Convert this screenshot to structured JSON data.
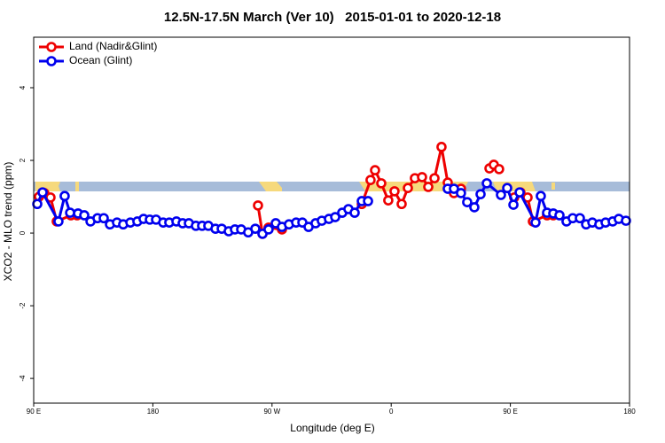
{
  "chart_data": {
    "type": "line",
    "title": "12.5N-17.5N March (Ver 10)   2015-01-01 to 2020-12-18",
    "xlabel": "Longitude (deg E)",
    "ylabel": "XCO2 - MLO trend (ppm)",
    "xlim": [
      -270,
      180
    ],
    "ylim": [
      -4.68,
      5.39
    ],
    "xticks": [
      {
        "value": -270,
        "label": "90 E"
      },
      {
        "value": -180,
        "label": "180"
      },
      {
        "value": -90,
        "label": "90 W"
      },
      0,
      {
        "value": 90,
        "label": "90 E"
      },
      180
    ],
    "yticks": [
      -4,
      -2,
      0,
      2,
      4
    ],
    "legend": "top-left",
    "series": [
      {
        "name": "Land (Nadir&Glint)",
        "color": "#ee0000",
        "x": [
          -266.0,
          -262.0,
          -257.3,
          -252.6,
          -241.9,
          -237.2,
          null,
          -100.6,
          -97.2,
          -92.6,
          -82.5,
          null,
          -22.2,
          -15.6,
          -12.2,
          -7.5,
          -2.2,
          2.5,
          7.9,
          12.6,
          17.9,
          23.3,
          28.0,
          32.7,
          38.0,
          42.7,
          47.4,
          52.7,
          null,
          74.2,
          77.5,
          81.5,
          null,
          92.9,
          97.6,
          103.0,
          107.0,
          117.7,
          122.4
        ],
        "values": [
          1.0,
          1.1,
          0.98,
          0.32,
          0.49,
          0.49,
          null,
          0.76,
          -0.02,
          0.15,
          0.1,
          null,
          0.8,
          1.46,
          1.73,
          1.37,
          0.9,
          1.15,
          0.8,
          1.24,
          1.51,
          1.54,
          1.27,
          1.51,
          2.37,
          1.39,
          1.1,
          1.22,
          null,
          1.78,
          1.88,
          1.76,
          null,
          0.98,
          1.12,
          0.98,
          0.32,
          0.49,
          0.49
        ]
      },
      {
        "name": "Ocean (Glint)",
        "color": "#0000ee",
        "x": [
          -267.3,
          -263.3,
          -251.3,
          -246.6,
          -242.5,
          -236.5,
          -231.8,
          -227.1,
          -221.8,
          -217.1,
          -212.4,
          -207.1,
          -202.4,
          -197.0,
          -191.7,
          -187.0,
          -182.3,
          -177.6,
          -172.2,
          -167.6,
          -162.2,
          -157.5,
          -152.8,
          -147.5,
          -142.8,
          -138.1,
          -132.7,
          -128.0,
          -122.7,
          -118.0,
          -113.3,
          -108.0,
          -102.6,
          -97.2,
          -92.6,
          -87.2,
          -82.5,
          -77.2,
          -71.8,
          -67.1,
          -62.4,
          -57.1,
          -52.4,
          -47.0,
          -42.3,
          -37.0,
          -32.3,
          -27.6,
          -22.2,
          -17.5,
          null,
          42.7,
          47.4,
          52.7,
          57.4,
          62.8,
          67.5,
          72.2,
          82.9,
          87.6,
          92.3,
          97.0,
          109.0,
          113.0,
          117.7,
          122.4,
          127.1,
          132.4,
          137.1,
          142.5,
          147.2,
          151.9,
          157.2,
          161.9,
          167.3,
          171.9,
          177.3
        ],
        "values": [
          0.8,
          1.12,
          0.32,
          1.02,
          0.56,
          0.54,
          0.49,
          0.32,
          0.41,
          0.41,
          0.24,
          0.29,
          0.24,
          0.29,
          0.32,
          0.39,
          0.37,
          0.37,
          0.29,
          0.29,
          0.32,
          0.27,
          0.27,
          0.2,
          0.2,
          0.2,
          0.12,
          0.12,
          0.05,
          0.1,
          0.1,
          0.02,
          0.12,
          -0.02,
          0.1,
          0.27,
          0.17,
          0.24,
          0.29,
          0.29,
          0.17,
          0.27,
          0.34,
          0.39,
          0.44,
          0.56,
          0.66,
          0.56,
          0.88,
          0.88,
          null,
          1.22,
          1.22,
          1.1,
          0.85,
          0.71,
          1.07,
          1.37,
          1.05,
          1.24,
          0.78,
          1.12,
          0.29,
          1.02,
          0.56,
          0.54,
          0.49,
          0.32,
          0.41,
          0.41,
          0.24,
          0.29,
          0.24,
          0.29,
          0.32,
          0.39,
          0.34
        ]
      }
    ]
  }
}
